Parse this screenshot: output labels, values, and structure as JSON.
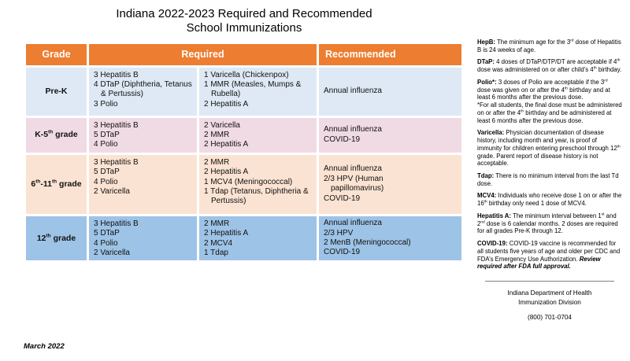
{
  "title": {
    "line1": "Indiana 2022-2023 Required and Recommended",
    "line2": "School Immunizations"
  },
  "table": {
    "header_color": "#ED7D31",
    "row_colors": [
      "#DEE9F5",
      "#F0DBE5",
      "#FBE3D3",
      "#9DC3E6"
    ],
    "headers": {
      "grade": "Grade",
      "required": "Required",
      "recommended": "Recommended"
    },
    "rows": [
      {
        "grade": "Pre-K",
        "required_a": [
          "3 Hepatitis B",
          "4 DTaP (Diphtheria, Tetanus & Pertussis)",
          "3 Polio"
        ],
        "required_b": [
          "1 Varicella (Chickenpox)",
          "1 MMR (Measles, Mumps & Rubella)",
          "2 Hepatitis A"
        ],
        "recommended": [
          "Annual influenza"
        ]
      },
      {
        "grade": "K-5th grade",
        "required_a": [
          "3 Hepatitis B",
          "5 DTaP",
          "4 Polio"
        ],
        "required_b": [
          "2 Varicella",
          "2 MMR",
          "2 Hepatitis A"
        ],
        "recommended": [
          "Annual influenza",
          "COVID-19"
        ]
      },
      {
        "grade": "6th-11th grade",
        "required_a": [
          "3 Hepatitis B",
          "5 DTaP",
          "4 Polio",
          "2 Varicella"
        ],
        "required_b": [
          "2 MMR",
          "2 Hepatitis A",
          "1 MCV4 (Meningococcal)",
          "1 Tdap (Tetanus, Diphtheria & Pertussis)"
        ],
        "recommended": [
          "Annual influenza",
          "2/3 HPV (Human papillomavirus)",
          "COVID-19"
        ]
      },
      {
        "grade": "12th grade",
        "required_a": [
          "3 Hepatitis B",
          "5 DTaP",
          "4 Polio",
          "2 Varicella"
        ],
        "required_b": [
          "2 MMR",
          "2 Hepatitis A",
          "2 MCV4",
          "1 Tdap"
        ],
        "recommended": [
          "Annual influenza",
          "2/3 HPV",
          "2 MenB (Meningococcal)",
          "COVID-19"
        ]
      }
    ]
  },
  "notes": [
    {
      "label": "HepB:",
      "text": "The minimum age for the 3rd dose of Hepatitis B is 24 weeks of age."
    },
    {
      "label": "DTaP:",
      "text": "4 doses of DTaP/DTP/DT are acceptable if 4th dose was administered on or after child’s 4th birthday."
    },
    {
      "label": "Polio*:",
      "text": "3 doses of Polio are acceptable if the 3rd dose was given on or after the 4th birthday and at least 6 months after the previous dose.",
      "text2": "*For all students, the final dose must be administered on or after the 4th birthday and be administered at least 6 months after the previous dose."
    },
    {
      "label": "Varicella:",
      "text": "Physician documentation of disease history, including month and year, is proof of immunity for children entering preschool through 12th grade. Parent report of disease history is not acceptable."
    },
    {
      "label": "Tdap:",
      "text": "There is no minimum interval from the last Td dose."
    },
    {
      "label": "MCV4:",
      "text": "Individuals who receive dose 1 on or after the 16th birthday only need 1 dose of MCV4."
    },
    {
      "label": "Hepatitis A:",
      "text": "The minimum interval between 1st and 2nd dose is 6 calendar months. 2 doses are required for all grades Pre-K through 12."
    },
    {
      "label": "COVID-19:",
      "text": "COVID-19 vaccine is recommended for all students five years of age and older per CDC and FDA’s Emergency Use Authorization.",
      "italic": "Review required after FDA full approval."
    }
  ],
  "footer": {
    "org_line1": "Indiana Department of Health",
    "org_line2": "Immunization Division",
    "phone": "(800) 701-0704",
    "date": "March 2022"
  }
}
